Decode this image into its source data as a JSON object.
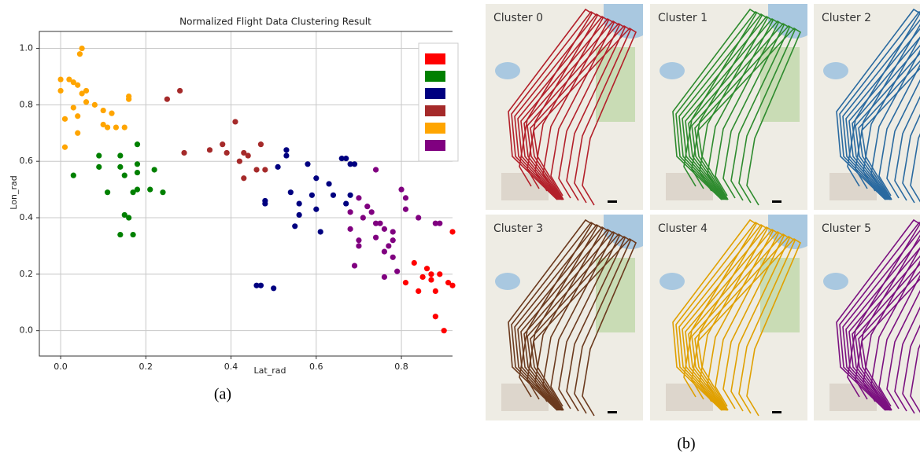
{
  "chart_data": {
    "type": "scatter",
    "title": "Normalized Flight Data Clustering Result",
    "x_label": "Lat_rad",
    "y_label": "Lon_rad",
    "xlim": [
      -0.05,
      0.92
    ],
    "ylim": [
      -0.09,
      1.06
    ],
    "xticks": [
      {
        "value": 0,
        "label": "0.0"
      },
      0.2,
      0.4,
      0.6,
      0.8
    ],
    "yticks": [
      {
        "value": 0,
        "label": "0.0"
      },
      0.2,
      0.4,
      0.6,
      0.8,
      {
        "value": 1,
        "label": "1.0"
      }
    ],
    "grid": true,
    "legend": "upper right",
    "series": [
      {
        "color": "#ff0000",
        "x": [
          0.81,
          0.83,
          0.84,
          0.85,
          0.87,
          0.88,
          0.88,
          0.89,
          0.9,
          0.91,
          0.92,
          0.92,
          0.87,
          0.86
        ],
        "y": [
          0.17,
          0.24,
          0.14,
          0.19,
          0.2,
          0.05,
          0.14,
          0.2,
          0.0,
          0.17,
          0.35,
          0.16,
          0.18,
          0.22
        ]
      },
      {
        "color": "#008000",
        "x": [
          0.03,
          0.09,
          0.09,
          0.11,
          0.14,
          0.14,
          0.15,
          0.18,
          0.18,
          0.18,
          0.17,
          0.18,
          0.22,
          0.21,
          0.24,
          0.15,
          0.16,
          0.14,
          0.17
        ],
        "y": [
          0.55,
          0.62,
          0.58,
          0.49,
          0.62,
          0.58,
          0.55,
          0.66,
          0.59,
          0.56,
          0.49,
          0.5,
          0.57,
          0.5,
          0.49,
          0.41,
          0.4,
          0.34,
          0.34
        ]
      },
      {
        "color": "#000080",
        "x": [
          0.51,
          0.53,
          0.53,
          0.54,
          0.56,
          0.58,
          0.59,
          0.6,
          0.6,
          0.61,
          0.56,
          0.55,
          0.63,
          0.64,
          0.66,
          0.67,
          0.68,
          0.69,
          0.68,
          0.67,
          0.48,
          0.48,
          0.46,
          0.47,
          0.5
        ],
        "y": [
          0.58,
          0.64,
          0.62,
          0.49,
          0.45,
          0.59,
          0.48,
          0.54,
          0.43,
          0.35,
          0.41,
          0.37,
          0.52,
          0.48,
          0.61,
          0.61,
          0.59,
          0.59,
          0.48,
          0.45,
          0.46,
          0.45,
          0.16,
          0.16,
          0.15
        ]
      },
      {
        "color": "#a52a2a",
        "x": [
          0.25,
          0.28,
          0.29,
          0.35,
          0.38,
          0.39,
          0.41,
          0.42,
          0.43,
          0.44,
          0.43,
          0.46,
          0.47,
          0.48
        ],
        "y": [
          0.82,
          0.85,
          0.63,
          0.64,
          0.66,
          0.63,
          0.74,
          0.6,
          0.63,
          0.62,
          0.54,
          0.57,
          0.66,
          0.57
        ]
      },
      {
        "color": "#ffa500",
        "x": [
          0.0,
          0.0,
          0.02,
          0.04,
          0.03,
          0.05,
          0.01,
          0.03,
          0.04,
          0.06,
          0.06,
          0.08,
          0.1,
          0.11,
          0.1,
          0.12,
          0.13,
          0.15,
          0.16,
          0.16,
          0.04,
          0.01,
          0.045,
          0.05
        ],
        "y": [
          0.89,
          0.85,
          0.89,
          0.87,
          0.88,
          0.84,
          0.75,
          0.79,
          0.76,
          0.81,
          0.85,
          0.8,
          0.78,
          0.72,
          0.73,
          0.77,
          0.72,
          0.72,
          0.82,
          0.83,
          0.7,
          0.65,
          0.98,
          1.0
        ]
      },
      {
        "color": "#800080",
        "x": [
          0.68,
          0.7,
          0.68,
          0.7,
          0.7,
          0.71,
          0.72,
          0.73,
          0.74,
          0.74,
          0.75,
          0.76,
          0.77,
          0.76,
          0.78,
          0.78,
          0.79,
          0.78,
          0.8,
          0.81,
          0.81,
          0.69,
          0.76,
          0.74,
          0.84,
          0.88,
          0.89
        ],
        "y": [
          0.42,
          0.47,
          0.36,
          0.32,
          0.3,
          0.4,
          0.44,
          0.42,
          0.38,
          0.33,
          0.38,
          0.28,
          0.3,
          0.36,
          0.26,
          0.35,
          0.21,
          0.32,
          0.5,
          0.47,
          0.43,
          0.23,
          0.19,
          0.57,
          0.4,
          0.38,
          0.38
        ]
      }
    ]
  },
  "caption_a": "(a)",
  "caption_b": "(b)",
  "maps": [
    {
      "label": "Cluster 0",
      "color": "#b3202a"
    },
    {
      "label": "Cluster 1",
      "color": "#2e8b2e"
    },
    {
      "label": "Cluster 2",
      "color": "#2a6aa0"
    },
    {
      "label": "Cluster 3",
      "color": "#6b3a1e"
    },
    {
      "label": "Cluster 4",
      "color": "#e0a000"
    },
    {
      "label": "Cluster 5",
      "color": "#7b1180"
    }
  ]
}
